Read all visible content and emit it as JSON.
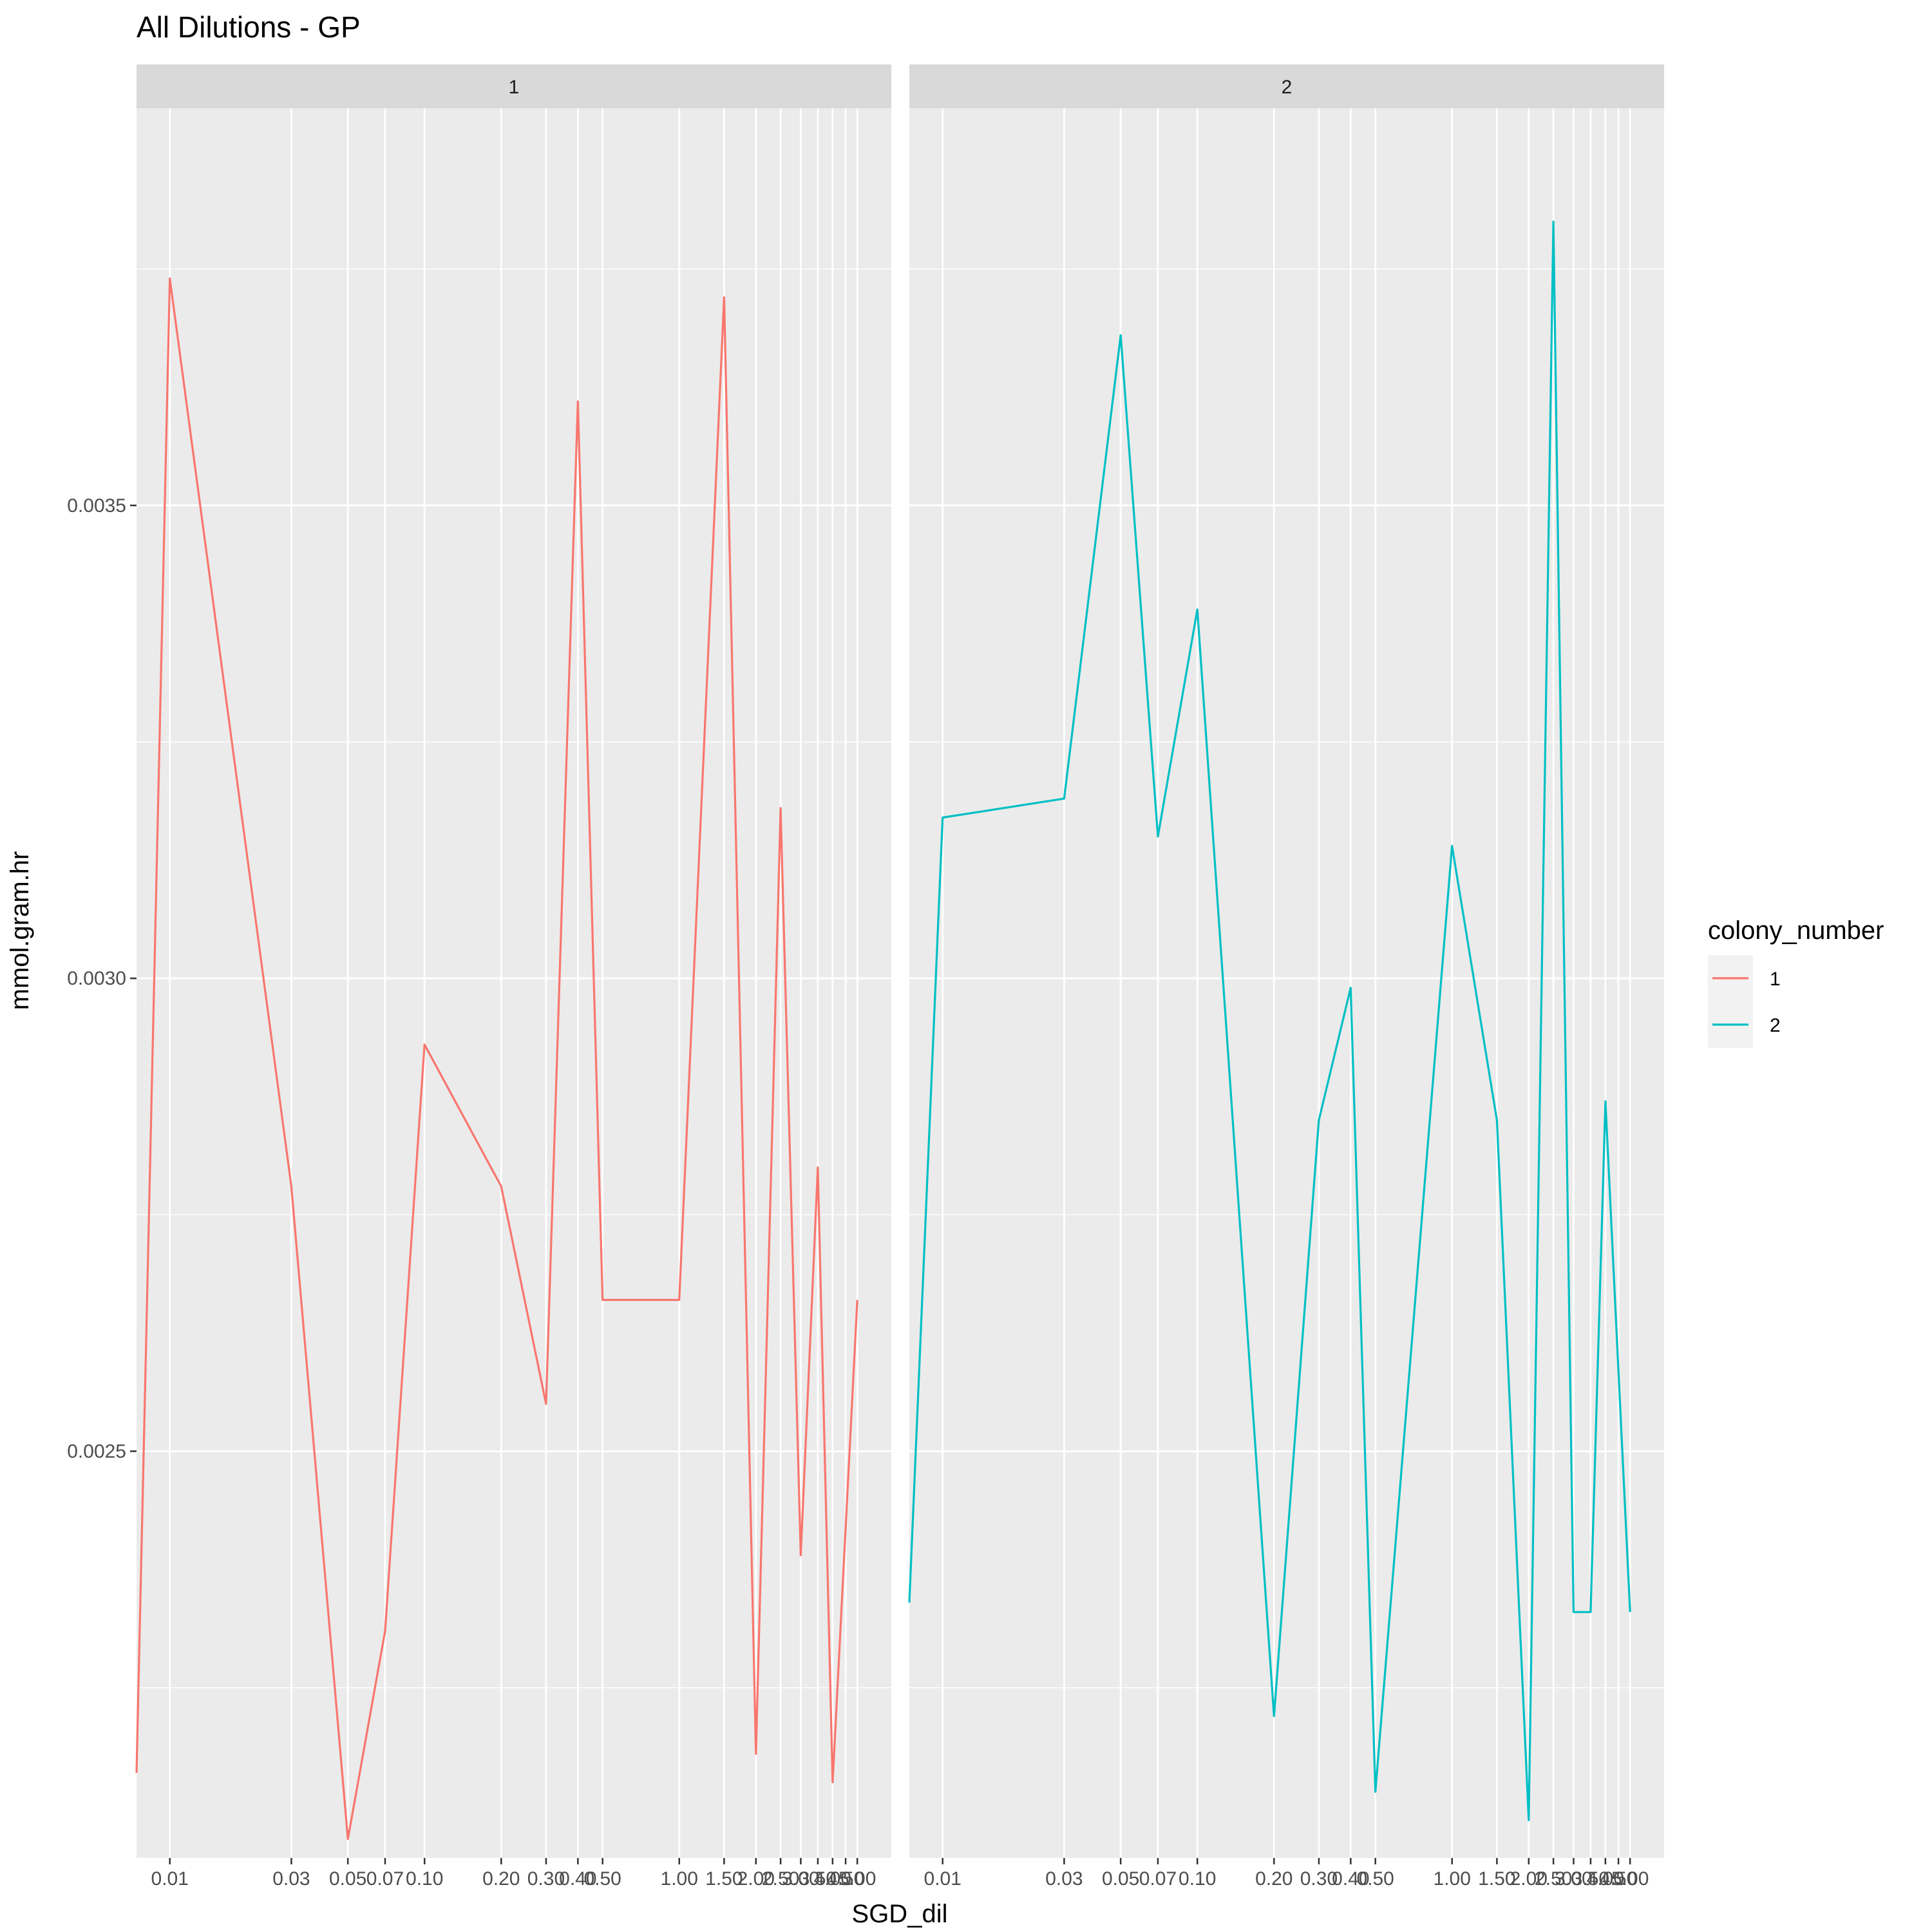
{
  "chart_data": {
    "type": "line",
    "title": "All Dilutions - GP",
    "xlabel": "SGD_dil",
    "ylabel": "mmol.gram.hr",
    "x_scale": "log",
    "xlim": [
      0.0074,
      6.8
    ],
    "ylim": [
      0.00207,
      0.00392
    ],
    "y_ticks": [
      0.0025,
      0.003,
      0.0035
    ],
    "y_tick_labels": [
      "0.0025",
      "0.0030",
      "0.0035"
    ],
    "x_ticks": [
      0.01,
      0.03,
      0.05,
      0.07,
      0.1,
      0.2,
      0.3,
      0.4,
      0.5,
      1.0,
      1.5,
      2.0,
      2.5,
      3.0,
      3.5,
      4.0,
      4.5,
      5.0
    ],
    "x_tick_labels": [
      "0.01",
      "0.03",
      "0.05",
      "0.07",
      "0.10",
      "0.20",
      "0.30",
      "0.40",
      "0.50",
      "1.00",
      "1.50",
      "2.00",
      "2.50",
      "3.00",
      "3.50",
      "4.00",
      "4.50",
      "5.00"
    ],
    "grid": true,
    "legend": {
      "title": "colony_number",
      "position": "right",
      "entries": [
        {
          "label": "1",
          "color": "#F8766D"
        },
        {
          "label": "2",
          "color": "#00BFC4"
        }
      ]
    },
    "panels": [
      {
        "strip": "1",
        "series": "1",
        "color": "#F8766D",
        "x": [
          0.0074,
          0.01,
          0.03,
          0.05,
          0.07,
          0.1,
          0.2,
          0.3,
          0.4,
          0.5,
          1.0,
          1.5,
          2.0,
          2.5,
          3.0,
          3.5,
          4.0,
          5.0
        ],
        "y": [
          0.00216,
          0.00374,
          0.00278,
          0.00209,
          0.00231,
          0.00293,
          0.00278,
          0.00255,
          0.00361,
          0.00266,
          0.00266,
          0.00372,
          0.00218,
          0.00318,
          0.00239,
          0.0028,
          0.00215,
          0.00266
        ]
      },
      {
        "strip": "2",
        "series": "2",
        "color": "#00BFC4",
        "x": [
          0.0074,
          0.01,
          0.03,
          0.05,
          0.07,
          0.1,
          0.2,
          0.3,
          0.4,
          0.5,
          1.0,
          1.5,
          2.0,
          2.5,
          3.0,
          3.5,
          4.0,
          5.0
        ],
        "y": [
          0.00234,
          0.00317,
          0.00319,
          0.00368,
          0.00315,
          0.00339,
          0.00222,
          0.00285,
          0.00299,
          0.00214,
          0.00314,
          0.00285,
          0.00211,
          0.0038,
          0.00233,
          0.00233,
          0.00287,
          0.00233
        ]
      }
    ]
  }
}
